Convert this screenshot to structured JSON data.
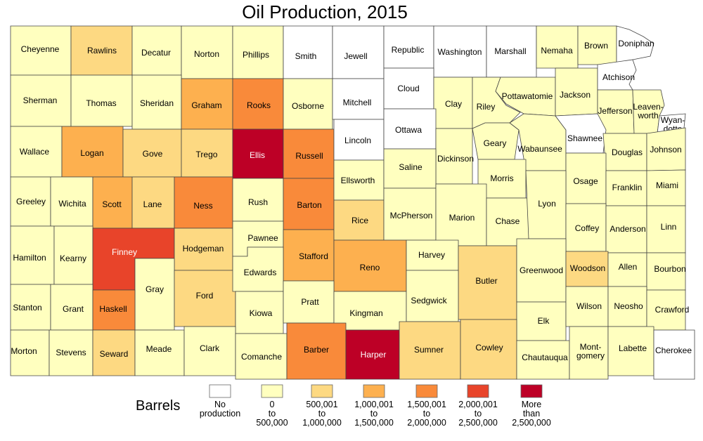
{
  "title": "Oil Production, 2015",
  "legend": {
    "title": "Barrels",
    "classes": [
      {
        "lines": [
          "No",
          "production"
        ],
        "color": "#ffffff"
      },
      {
        "lines": [
          "0",
          "to",
          "500,000"
        ],
        "color": "#ffffbf"
      },
      {
        "lines": [
          "500,001",
          "to",
          "1,000,000"
        ],
        "color": "#fdd982"
      },
      {
        "lines": [
          "1,000,001",
          "to",
          "1,500,000"
        ],
        "color": "#fdb04f"
      },
      {
        "lines": [
          "1,500,001",
          "to",
          "2,000,000"
        ],
        "color": "#f98a3a"
      },
      {
        "lines": [
          "2,000,001",
          "to",
          "2,500,000"
        ],
        "color": "#e8442a"
      },
      {
        "lines": [
          "More",
          "than",
          "2,500,000"
        ],
        "color": "#bd0026"
      }
    ]
  },
  "counties": [
    {
      "name": "Cheyenne",
      "label": [
        "Cheyenne"
      ],
      "cls": 1
    },
    {
      "name": "Rawlins",
      "label": [
        "Rawlins"
      ],
      "cls": 2
    },
    {
      "name": "Decatur",
      "label": [
        "Decatur"
      ],
      "cls": 1
    },
    {
      "name": "Norton",
      "label": [
        "Norton"
      ],
      "cls": 1
    },
    {
      "name": "Phillips",
      "label": [
        "Phillips"
      ],
      "cls": 1
    },
    {
      "name": "Smith",
      "label": [
        "Smith"
      ],
      "cls": 0
    },
    {
      "name": "Jewell",
      "label": [
        "Jewell"
      ],
      "cls": 0
    },
    {
      "name": "Republic",
      "label": [
        "Republic"
      ],
      "cls": 0
    },
    {
      "name": "Washington",
      "label": [
        "Washington"
      ],
      "cls": 0
    },
    {
      "name": "Marshall",
      "label": [
        "Marshall"
      ],
      "cls": 0
    },
    {
      "name": "Nemaha",
      "label": [
        "Nemaha"
      ],
      "cls": 1
    },
    {
      "name": "Brown",
      "label": [
        "Brown"
      ],
      "cls": 1
    },
    {
      "name": "Doniphan",
      "label": [
        "Doniphan"
      ],
      "cls": 0
    },
    {
      "name": "Sherman",
      "label": [
        "Sherman"
      ],
      "cls": 1
    },
    {
      "name": "Thomas",
      "label": [
        "Thomas"
      ],
      "cls": 1
    },
    {
      "name": "Sheridan",
      "label": [
        "Sheridan"
      ],
      "cls": 1
    },
    {
      "name": "Graham",
      "label": [
        "Graham"
      ],
      "cls": 3
    },
    {
      "name": "Rooks",
      "label": [
        "Rooks"
      ],
      "cls": 4
    },
    {
      "name": "Osborne",
      "label": [
        "Osborne"
      ],
      "cls": 1
    },
    {
      "name": "Mitchell",
      "label": [
        "Mitchell"
      ],
      "cls": 0
    },
    {
      "name": "Cloud",
      "label": [
        "Cloud"
      ],
      "cls": 0
    },
    {
      "name": "Clay",
      "label": [
        "Clay"
      ],
      "cls": 1
    },
    {
      "name": "Riley",
      "label": [
        "Riley"
      ],
      "cls": 1
    },
    {
      "name": "Pottawatomie",
      "label": [
        "Pottawatomie"
      ],
      "cls": 1
    },
    {
      "name": "Jackson",
      "label": [
        "Jackson"
      ],
      "cls": 1
    },
    {
      "name": "Atchison",
      "label": [
        "Atchison"
      ],
      "cls": 0
    },
    {
      "name": "Jefferson",
      "label": [
        "Jefferson"
      ],
      "cls": 1
    },
    {
      "name": "Leavenworth",
      "label": [
        "Leaven-",
        "worth"
      ],
      "cls": 1
    },
    {
      "name": "Wyandotte",
      "label": [
        "Wyan-",
        "dotte"
      ],
      "cls": 0
    },
    {
      "name": "Wallace",
      "label": [
        "Wallace"
      ],
      "cls": 1
    },
    {
      "name": "Logan",
      "label": [
        "Logan"
      ],
      "cls": 3
    },
    {
      "name": "Gove",
      "label": [
        "Gove"
      ],
      "cls": 2
    },
    {
      "name": "Trego",
      "label": [
        "Trego"
      ],
      "cls": 2
    },
    {
      "name": "Ellis",
      "label": [
        "Ellis"
      ],
      "cls": 6
    },
    {
      "name": "Russell",
      "label": [
        "Russell"
      ],
      "cls": 4
    },
    {
      "name": "Lincoln",
      "label": [
        "Lincoln"
      ],
      "cls": 0
    },
    {
      "name": "Ottawa",
      "label": [
        "Ottawa"
      ],
      "cls": 0
    },
    {
      "name": "Dickinson",
      "label": [
        "Dickinson"
      ],
      "cls": 1
    },
    {
      "name": "Geary",
      "label": [
        "Geary"
      ],
      "cls": 1
    },
    {
      "name": "Wabaunsee",
      "label": [
        "Wabaunsee"
      ],
      "cls": 1
    },
    {
      "name": "Shawnee",
      "label": [
        "Shawnee"
      ],
      "cls": 0
    },
    {
      "name": "Douglas",
      "label": [
        "Douglas"
      ],
      "cls": 1
    },
    {
      "name": "Johnson",
      "label": [
        "Johnson"
      ],
      "cls": 1
    },
    {
      "name": "Greeley",
      "label": [
        "Greeley"
      ],
      "cls": 1
    },
    {
      "name": "Wichita",
      "label": [
        "Wichita"
      ],
      "cls": 1
    },
    {
      "name": "Scott",
      "label": [
        "Scott"
      ],
      "cls": 3
    },
    {
      "name": "Lane",
      "label": [
        "Lane"
      ],
      "cls": 2
    },
    {
      "name": "Ness",
      "label": [
        "Ness"
      ],
      "cls": 4
    },
    {
      "name": "Rush",
      "label": [
        "Rush"
      ],
      "cls": 1
    },
    {
      "name": "Barton",
      "label": [
        "Barton"
      ],
      "cls": 4
    },
    {
      "name": "Ellsworth",
      "label": [
        "Ellsworth"
      ],
      "cls": 1
    },
    {
      "name": "Saline",
      "label": [
        "Saline"
      ],
      "cls": 1
    },
    {
      "name": "Morris",
      "label": [
        "Morris"
      ],
      "cls": 1
    },
    {
      "name": "Osage",
      "label": [
        "Osage"
      ],
      "cls": 1
    },
    {
      "name": "Franklin",
      "label": [
        "Franklin"
      ],
      "cls": 1
    },
    {
      "name": "Miami",
      "label": [
        "Miami"
      ],
      "cls": 1
    },
    {
      "name": "Hamilton",
      "label": [
        "Hamilton"
      ],
      "cls": 1
    },
    {
      "name": "Kearny",
      "label": [
        "Kearny"
      ],
      "cls": 1
    },
    {
      "name": "Finney",
      "label": [
        "Finney"
      ],
      "cls": 5
    },
    {
      "name": "Hodgeman",
      "label": [
        "Hodgeman"
      ],
      "cls": 2
    },
    {
      "name": "Pawnee",
      "label": [
        "Pawnee"
      ],
      "cls": 1
    },
    {
      "name": "Stafford",
      "label": [
        "Stafford"
      ],
      "cls": 3
    },
    {
      "name": "Rice",
      "label": [
        "Rice"
      ],
      "cls": 2
    },
    {
      "name": "McPherson",
      "label": [
        "McPherson"
      ],
      "cls": 1
    },
    {
      "name": "Marion",
      "label": [
        "Marion"
      ],
      "cls": 1
    },
    {
      "name": "Chase",
      "label": [
        "Chase"
      ],
      "cls": 1
    },
    {
      "name": "Lyon",
      "label": [
        "Lyon"
      ],
      "cls": 1
    },
    {
      "name": "Coffey",
      "label": [
        "Coffey"
      ],
      "cls": 1
    },
    {
      "name": "Anderson",
      "label": [
        "Anderson"
      ],
      "cls": 1
    },
    {
      "name": "Linn",
      "label": [
        "Linn"
      ],
      "cls": 1
    },
    {
      "name": "Gray",
      "label": [
        "Gray"
      ],
      "cls": 1
    },
    {
      "name": "Ford",
      "label": [
        "Ford"
      ],
      "cls": 2
    },
    {
      "name": "Edwards",
      "label": [
        "Edwards"
      ],
      "cls": 1
    },
    {
      "name": "Reno",
      "label": [
        "Reno"
      ],
      "cls": 3
    },
    {
      "name": "Harvey",
      "label": [
        "Harvey"
      ],
      "cls": 1
    },
    {
      "name": "Butler",
      "label": [
        "Butler"
      ],
      "cls": 2
    },
    {
      "name": "Greenwood",
      "label": [
        "Greenwood"
      ],
      "cls": 1
    },
    {
      "name": "Woodson",
      "label": [
        "Woodson"
      ],
      "cls": 2
    },
    {
      "name": "Allen",
      "label": [
        "Allen"
      ],
      "cls": 1
    },
    {
      "name": "Bourbon",
      "label": [
        "Bourbon"
      ],
      "cls": 1
    },
    {
      "name": "Stanton",
      "label": [
        "Stanton"
      ],
      "cls": 1
    },
    {
      "name": "Grant",
      "label": [
        "Grant"
      ],
      "cls": 1
    },
    {
      "name": "Haskell",
      "label": [
        "Haskell"
      ],
      "cls": 4
    },
    {
      "name": "Kiowa",
      "label": [
        "Kiowa"
      ],
      "cls": 1
    },
    {
      "name": "Pratt",
      "label": [
        "Pratt"
      ],
      "cls": 1
    },
    {
      "name": "Kingman",
      "label": [
        "Kingman"
      ],
      "cls": 1
    },
    {
      "name": "Sedgwick",
      "label": [
        "Sedgwick"
      ],
      "cls": 1
    },
    {
      "name": "Elk",
      "label": [
        "Elk"
      ],
      "cls": 1
    },
    {
      "name": "Wilson",
      "label": [
        "Wilson"
      ],
      "cls": 1
    },
    {
      "name": "Neosho",
      "label": [
        "Neosho"
      ],
      "cls": 1
    },
    {
      "name": "Crawford",
      "label": [
        "Crawford"
      ],
      "cls": 1
    },
    {
      "name": "Morton",
      "label": [
        "Morton"
      ],
      "cls": 1
    },
    {
      "name": "Stevens",
      "label": [
        "Stevens"
      ],
      "cls": 1
    },
    {
      "name": "Seward",
      "label": [
        "Seward"
      ],
      "cls": 2
    },
    {
      "name": "Meade",
      "label": [
        "Meade"
      ],
      "cls": 1
    },
    {
      "name": "Clark",
      "label": [
        "Clark"
      ],
      "cls": 1
    },
    {
      "name": "Comanche",
      "label": [
        "Comanche"
      ],
      "cls": 1
    },
    {
      "name": "Barber",
      "label": [
        "Barber"
      ],
      "cls": 4
    },
    {
      "name": "Harper",
      "label": [
        "Harper"
      ],
      "cls": 6
    },
    {
      "name": "Sumner",
      "label": [
        "Sumner"
      ],
      "cls": 2
    },
    {
      "name": "Cowley",
      "label": [
        "Cowley"
      ],
      "cls": 2
    },
    {
      "name": "Chautauqua",
      "label": [
        "Chautauqua"
      ],
      "cls": 1
    },
    {
      "name": "Montgomery",
      "label": [
        "Mont-",
        "gomery"
      ],
      "cls": 1
    },
    {
      "name": "Labette",
      "label": [
        "Labette"
      ],
      "cls": 1
    },
    {
      "name": "Cherokee",
      "label": [
        "Cherokee"
      ],
      "cls": 0
    }
  ]
}
